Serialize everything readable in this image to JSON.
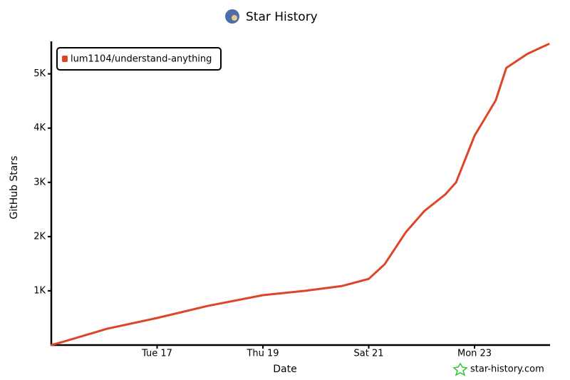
{
  "chart_data": {
    "type": "line",
    "title": "Star History",
    "x_label": "Date",
    "y_label": "GitHub Stars",
    "x": [
      15,
      15.24,
      16.05,
      17,
      17.95,
      19,
      19.8,
      20.5,
      21,
      21.3,
      21.7,
      22.05,
      22.45,
      22.65,
      23,
      23.4,
      23.6,
      24,
      24.4
    ],
    "series": [
      {
        "name": "lum1104/understand-anything",
        "color": "#dd4528",
        "values": [
          0,
          65,
          300,
          500,
          720,
          920,
          1000,
          1090,
          1220,
          1490,
          2080,
          2470,
          2780,
          3000,
          3860,
          4510,
          5110,
          5370,
          5550
        ]
      }
    ],
    "xlim": [
      15,
      24.4
    ],
    "xticks": [
      {
        "value": 17,
        "label": "Tue 17"
      },
      {
        "value": 19,
        "label": "Thu 19"
      },
      {
        "value": 21,
        "label": "Sat 21"
      },
      {
        "value": 23,
        "label": "Mon 23"
      }
    ],
    "ylim": [
      0,
      5600
    ],
    "yticks": [
      {
        "value": 1000,
        "label": "1K"
      },
      {
        "value": 2000,
        "label": "2K"
      },
      {
        "value": 3000,
        "label": "3K"
      },
      {
        "value": 4000,
        "label": "4K"
      },
      {
        "value": 5000,
        "label": "5K"
      }
    ],
    "legend": "top-left",
    "watermark": "star-history.com"
  }
}
